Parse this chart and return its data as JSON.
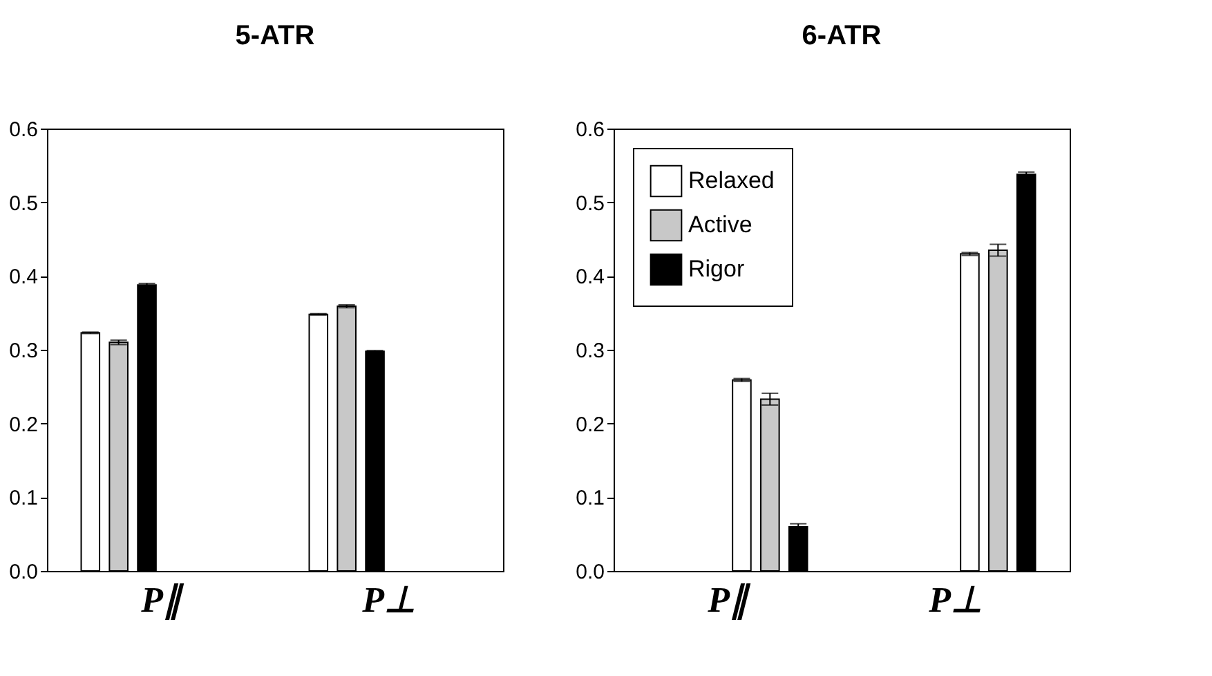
{
  "chart_data": [
    {
      "type": "bar",
      "title": "5-ATR",
      "categories": [
        "P∥",
        "P⊥"
      ],
      "ylim": [
        0,
        0.6
      ],
      "yticks": [
        {
          "value": 0,
          "label": "0.0"
        },
        0.1,
        0.2,
        0.3,
        0.4,
        0.5,
        0.6
      ],
      "grid": false,
      "legend": false,
      "series": [
        {
          "color": "#ffffff",
          "values": [
            0.323,
            0.348
          ],
          "errors": [
            0.001,
            0.001
          ]
        },
        {
          "color": "#c8c8c8",
          "values": [
            0.31,
            0.359
          ],
          "errors": [
            0.003,
            0.002
          ]
        },
        {
          "color": "#000000",
          "values": [
            0.388,
            0.298
          ],
          "errors": [
            0.002,
            0.001
          ]
        }
      ]
    },
    {
      "type": "bar",
      "title": "6-ATR",
      "categories": [
        "P∥",
        "P⊥"
      ],
      "ylim": [
        0,
        0.6
      ],
      "yticks": [
        {
          "value": 0,
          "label": "0.0"
        },
        0.1,
        0.2,
        0.3,
        0.4,
        0.5,
        0.6
      ],
      "grid": false,
      "legend": "top left",
      "series": [
        {
          "name": "Relaxed",
          "color": "#ffffff",
          "values": [
            0.259,
            0.43
          ],
          "errors": [
            0.002,
            0.002
          ]
        },
        {
          "name": "Active",
          "color": "#c8c8c8",
          "values": [
            0.233,
            0.435
          ],
          "errors": [
            0.008,
            0.008
          ]
        },
        {
          "name": "Rigor",
          "color": "#000000",
          "values": [
            0.06,
            0.538
          ],
          "errors": [
            0.004,
            0.003
          ]
        }
      ]
    }
  ]
}
